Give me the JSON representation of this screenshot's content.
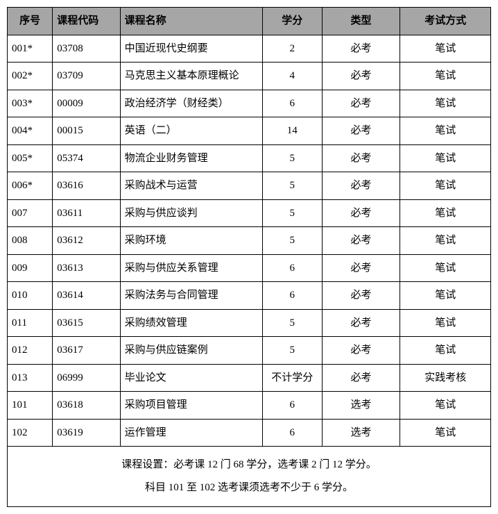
{
  "table": {
    "columns": [
      "序号",
      "课程代码",
      "课程名称",
      "学分",
      "类型",
      "考试方式"
    ],
    "rows": [
      {
        "seq": "001*",
        "code": "03708",
        "name": "中国近现代史纲要",
        "credit": "2",
        "type": "必考",
        "exam": "笔试"
      },
      {
        "seq": "002*",
        "code": "03709",
        "name": "马克思主义基本原理概论",
        "credit": "4",
        "type": "必考",
        "exam": "笔试"
      },
      {
        "seq": "003*",
        "code": "00009",
        "name": "政治经济学（财经类）",
        "credit": "6",
        "type": "必考",
        "exam": "笔试"
      },
      {
        "seq": "004*",
        "code": "00015",
        "name": "英语（二）",
        "credit": "14",
        "type": "必考",
        "exam": "笔试"
      },
      {
        "seq": "005*",
        "code": "05374",
        "name": "物流企业财务管理",
        "credit": "5",
        "type": "必考",
        "exam": "笔试"
      },
      {
        "seq": "006*",
        "code": "03616",
        "name": "采购战术与运营",
        "credit": "5",
        "type": "必考",
        "exam": "笔试"
      },
      {
        "seq": "007",
        "code": "03611",
        "name": "采购与供应谈判",
        "credit": "5",
        "type": "必考",
        "exam": "笔试"
      },
      {
        "seq": "008",
        "code": "03612",
        "name": "采购环境",
        "credit": "5",
        "type": "必考",
        "exam": "笔试"
      },
      {
        "seq": "009",
        "code": "03613",
        "name": "采购与供应关系管理",
        "credit": "6",
        "type": "必考",
        "exam": "笔试"
      },
      {
        "seq": "010",
        "code": "03614",
        "name": "采购法务与合同管理",
        "credit": "6",
        "type": "必考",
        "exam": "笔试"
      },
      {
        "seq": "011",
        "code": "03615",
        "name": "采购绩效管理",
        "credit": "5",
        "type": "必考",
        "exam": "笔试"
      },
      {
        "seq": "012",
        "code": "03617",
        "name": "采购与供应链案例",
        "credit": "5",
        "type": "必考",
        "exam": "笔试"
      },
      {
        "seq": "013",
        "code": "06999",
        "name": "毕业论文",
        "credit": "不计学分",
        "type": "必考",
        "exam": "实践考核"
      },
      {
        "seq": "101",
        "code": "03618",
        "name": "采购项目管理",
        "credit": "6",
        "type": "选考",
        "exam": "笔试"
      },
      {
        "seq": "102",
        "code": "03619",
        "name": "运作管理",
        "credit": "6",
        "type": "选考",
        "exam": "笔试"
      }
    ],
    "footer_line1": "课程设置：必考课 12 门 68 学分，选考课 2 门 12 学分。",
    "footer_line2": "科目 101 至 102 选考课须选考不少于 6 学分。",
    "header_bg": "#a6a6a6",
    "border_color": "#000000"
  }
}
